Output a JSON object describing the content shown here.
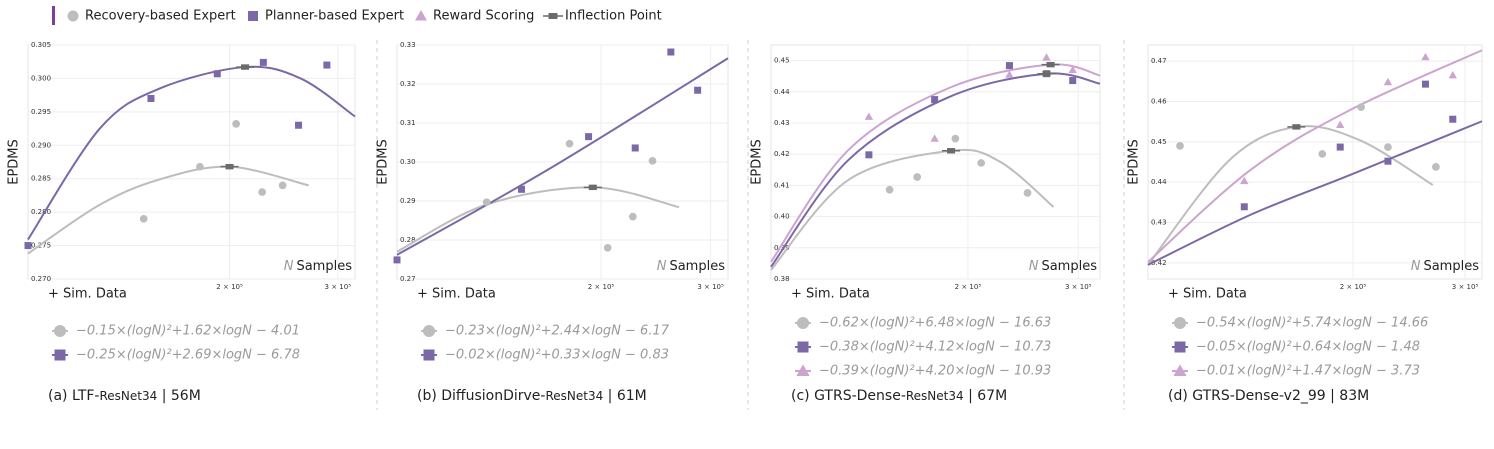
{
  "legend": [
    {
      "name": "Recovery-based Expert",
      "color": "#bdbdbd",
      "marker": "circle"
    },
    {
      "name": "Planner-based Expert",
      "color": "#7b68a6",
      "marker": "square"
    },
    {
      "name": "Reward Scoring",
      "color": "#cda3cf",
      "marker": "triangle"
    },
    {
      "name": "Inflection Point",
      "color": "#6b6b6b",
      "marker": "inflection"
    }
  ],
  "chart_data": [
    {
      "type": "scatter",
      "title": [
        "(a) LTF-",
        "ResNet34",
        " | 56M"
      ],
      "y_label": "EPDMS",
      "x_label": "+ Sim. Data",
      "annotation": [
        "N",
        "Samples"
      ],
      "x_log": true,
      "grid": true,
      "xlim": [
        94000,
        320000
      ],
      "xticks": [
        {
          "value": 200000,
          "label": "2 × 10⁵"
        },
        {
          "value": 300000,
          "label": "3 × 10⁵"
        }
      ],
      "ylim": [
        0.27,
        0.305
      ],
      "yticks": [
        {
          "value": 0.27,
          "label": "0.270"
        },
        0.275,
        {
          "value": 0.28,
          "label": "0.280"
        },
        0.285,
        {
          "value": 0.29,
          "label": "0.290"
        },
        0.295,
        {
          "value": 0.3,
          "label": "0.300"
        },
        0.305
      ],
      "series": [
        {
          "color": "#bdbdbd",
          "marker": "circle",
          "x": [
            145000,
            179000,
            205000,
            226000,
            244000
          ],
          "values": [
            0.279,
            0.2868,
            0.2932,
            0.283,
            0.284
          ],
          "fit_x": [
            94000,
            123000,
            154000,
            200000,
            269000
          ],
          "fit": [
            0.2738,
            0.2811,
            0.2849,
            0.2868,
            0.284
          ],
          "inflection_x": 200000,
          "inflection": 0.2868
        },
        {
          "color": "#7b68a6",
          "marker": "square",
          "x": [
            94000,
            149000,
            191000,
            227000,
            259000,
            288000
          ],
          "values": [
            0.275,
            0.297,
            0.3007,
            0.3024,
            0.293,
            0.302
          ],
          "fit_x": [
            94000,
            123000,
            154000,
            212000,
            261000,
            320000
          ],
          "fit": [
            0.2759,
            0.2925,
            0.2985,
            0.3017,
            0.3,
            0.2943
          ],
          "inflection_x": 212000,
          "inflection": 0.3017
        }
      ],
      "equations": [
        {
          "color": "#bdbdbd",
          "marker": "circle",
          "text": "−0.15×(logN)²+1.62×logN − 4.01"
        },
        {
          "color": "#7b68a6",
          "marker": "square",
          "text": "−0.25×(logN)²+2.69×logN − 6.78"
        }
      ]
    },
    {
      "type": "scatter",
      "title": [
        "(b) DiffusionDirve-",
        "ResNet34",
        " | 61M"
      ],
      "y_label": "EPDMS",
      "x_label": "+ Sim. Data",
      "annotation": [
        "N",
        "Samples"
      ],
      "x_log": true,
      "grid": true,
      "xlim": [
        94000,
        320000
      ],
      "xticks": [
        {
          "value": 200000,
          "label": "2 × 10⁵"
        },
        {
          "value": 300000,
          "label": "3 × 10⁵"
        }
      ],
      "ylim": [
        0.27,
        0.33
      ],
      "yticks": [
        0.27,
        0.28,
        0.29,
        {
          "value": 0.3,
          "label": "0.30"
        },
        0.31,
        0.32,
        0.33
      ],
      "series": [
        {
          "color": "#bdbdbd",
          "marker": "circle",
          "x": [
            131000,
            178000,
            205000,
            225000,
            242000
          ],
          "values": [
            0.2897,
            0.3047,
            0.278,
            0.286,
            0.3003
          ],
          "fit_x": [
            94000,
            131000,
            194000,
            267000
          ],
          "fit": [
            0.277,
            0.2891,
            0.2935,
            0.2884
          ],
          "inflection_x": 194000,
          "inflection": 0.2935
        },
        {
          "color": "#7b68a6",
          "marker": "square",
          "x": [
            94000,
            149000,
            191000,
            227000,
            259000,
            286000
          ],
          "values": [
            0.2749,
            0.293,
            0.3065,
            0.3036,
            0.3282,
            0.3184
          ],
          "fit_x": [
            94000,
            165000,
            320000
          ],
          "fit": [
            0.2762,
            0.2982,
            0.3266
          ]
        }
      ],
      "equations": [
        {
          "color": "#bdbdbd",
          "marker": "circle",
          "text": "−0.23×(logN)²+2.44×logN − 6.17"
        },
        {
          "color": "#7b68a6",
          "marker": "square",
          "text": "−0.02×(logN)²+0.33×logN − 0.83"
        }
      ]
    },
    {
      "type": "scatter",
      "title": [
        "(c) GTRS-Dense-",
        "ResNet34",
        " | 67M"
      ],
      "y_label": "EPDMS",
      "x_label": "+ Sim. Data",
      "annotation": [
        "N",
        "Samples"
      ],
      "x_log": true,
      "grid": true,
      "xlim": [
        97000,
        325000
      ],
      "xticks": [
        {
          "value": 200000,
          "label": "2 × 10⁵"
        },
        {
          "value": 300000,
          "label": "3 × 10⁵"
        }
      ],
      "ylim": [
        0.38,
        0.455
      ],
      "yticks": [
        0.38,
        0.39,
        {
          "value": 0.4,
          "label": "0.40"
        },
        0.41,
        0.42,
        0.43,
        0.44,
        0.45
      ],
      "series": [
        {
          "color": "#bdbdbd",
          "marker": "circle",
          "x": [
            150000,
            166000,
            191000,
            210000,
            249000
          ],
          "values": [
            0.4086,
            0.4127,
            0.425,
            0.4172,
            0.4076
          ],
          "fit_x": [
            97000,
            129000,
            188000,
            225000,
            274000
          ],
          "fit": [
            0.3829,
            0.4118,
            0.4211,
            0.4176,
            0.4031
          ],
          "inflection_x": 188000,
          "inflection": 0.4211
        },
        {
          "color": "#7b68a6",
          "marker": "square",
          "x": [
            139000,
            177000,
            233000,
            267000,
            294000
          ],
          "values": [
            0.4198,
            0.4375,
            0.4484,
            0.4458,
            0.4436
          ],
          "fit_x": [
            97000,
            129000,
            187000,
            267000,
            325000
          ],
          "fit": [
            0.3839,
            0.4182,
            0.4384,
            0.4458,
            0.4426
          ],
          "inflection_x": 267000,
          "inflection": 0.4458
        },
        {
          "color": "#cda3cf",
          "marker": "triangle",
          "x": [
            139000,
            177000,
            233000,
            267000,
            294000
          ],
          "values": [
            0.432,
            0.425,
            0.4455,
            0.451,
            0.447
          ],
          "fit_x": [
            97000,
            129000,
            187000,
            271000,
            325000
          ],
          "fit": [
            0.3855,
            0.4214,
            0.4413,
            0.4487,
            0.4452
          ],
          "inflection_x": 271000,
          "inflection": 0.4487
        }
      ],
      "equations": [
        {
          "color": "#bdbdbd",
          "marker": "circle",
          "text": "−0.62×(logN)²+6.48×logN − 16.63"
        },
        {
          "color": "#7b68a6",
          "marker": "square",
          "text": "−0.38×(logN)²+4.12×logN − 10.73"
        },
        {
          "color": "#cda3cf",
          "marker": "triangle",
          "text": "−0.39×(logN)²+4.20×logN − 10.93"
        }
      ]
    },
    {
      "type": "scatter",
      "title": [
        "(d) GTRS-Dense-v2_99 | 83M"
      ],
      "y_label": "EPDMS",
      "x_label": "+ Sim. Data",
      "annotation": [
        "N",
        "Samples"
      ],
      "x_log": true,
      "grid": true,
      "xlim": [
        95300,
        319000
      ],
      "xticks": [
        {
          "value": 200000,
          "label": "2 × 10⁵"
        },
        {
          "value": 300000,
          "label": "3 × 10⁵"
        }
      ],
      "ylim": [
        0.416,
        0.474
      ],
      "yticks": [
        0.42,
        0.43,
        0.44,
        0.45,
        0.46,
        0.47
      ],
      "series": [
        {
          "color": "#bdbdbd",
          "marker": "circle",
          "x": [
            107000,
            179000,
            206000,
            227000,
            270000
          ],
          "values": [
            0.449,
            0.447,
            0.4586,
            0.4487,
            0.4438
          ],
          "fit_x": [
            95300,
            128000,
            163000,
            205000,
            267000
          ],
          "fit": [
            0.4195,
            0.4455,
            0.4537,
            0.4504,
            0.4393
          ],
          "inflection_x": 163000,
          "inflection": 0.4537
        },
        {
          "color": "#7b68a6",
          "marker": "square",
          "x": [
            135000,
            191000,
            227000,
            260000,
            287000
          ],
          "values": [
            0.4339,
            0.4487,
            0.4452,
            0.4643,
            0.4556
          ],
          "fit_x": [
            95300,
            138000,
            198000,
            319000
          ],
          "fit": [
            0.4195,
            0.4319,
            0.4418,
            0.4551
          ]
        },
        {
          "color": "#cda3cf",
          "marker": "triangle",
          "x": [
            135000,
            191000,
            227000,
            260000,
            287000
          ],
          "values": [
            0.4403,
            0.4542,
            0.4648,
            0.471,
            0.4665
          ],
          "fit_x": [
            95300,
            138000,
            198000,
            319000
          ],
          "fit": [
            0.4202,
            0.443,
            0.4579,
            0.4727
          ]
        }
      ],
      "equations": [
        {
          "color": "#bdbdbd",
          "marker": "circle",
          "text": "−0.54×(logN)²+5.74×logN − 14.66"
        },
        {
          "color": "#7b68a6",
          "marker": "square",
          "text": "−0.05×(logN)²+0.64×logN − 1.48"
        },
        {
          "color": "#cda3cf",
          "marker": "triangle",
          "text": "−0.01×(logN)²+1.47×logN − 3.73"
        }
      ]
    }
  ]
}
